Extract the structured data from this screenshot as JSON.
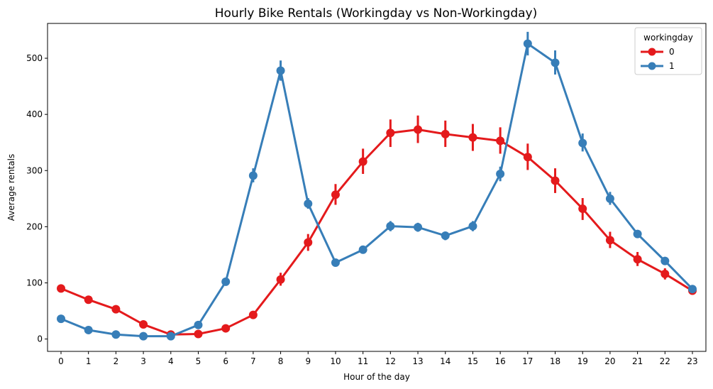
{
  "chart_data": {
    "type": "line",
    "title": "Hourly Bike Rentals (Workingday vs Non-Workingday)",
    "xlabel": "Hour of the day",
    "ylabel": "Average rentals",
    "categories": [
      "0",
      "1",
      "2",
      "3",
      "4",
      "5",
      "6",
      "7",
      "8",
      "9",
      "10",
      "11",
      "12",
      "13",
      "14",
      "15",
      "16",
      "17",
      "18",
      "19",
      "20",
      "21",
      "22",
      "23"
    ],
    "ylim": [
      -22,
      562
    ],
    "yticks": [
      0,
      100,
      200,
      300,
      400,
      500
    ],
    "grid": false,
    "legend": {
      "title": "workingday",
      "placement": "top-right"
    },
    "series": [
      {
        "name": "0",
        "color": "#e41a1c",
        "values": [
          90,
          70,
          53,
          26,
          8,
          9,
          19,
          43,
          106,
          172,
          257,
          316,
          367,
          373,
          365,
          359,
          353,
          324,
          282,
          232,
          176,
          142,
          116,
          86
        ],
        "err_low": [
          84,
          65,
          48,
          22,
          6,
          6,
          16,
          38,
          95,
          157,
          239,
          294,
          342,
          349,
          342,
          335,
          330,
          301,
          260,
          212,
          162,
          130,
          106,
          80
        ],
        "err_high": [
          97,
          75,
          58,
          30,
          11,
          12,
          23,
          48,
          118,
          187,
          276,
          339,
          391,
          398,
          389,
          383,
          377,
          348,
          304,
          251,
          191,
          155,
          126,
          92
        ]
      },
      {
        "name": "1",
        "color": "#377eb8",
        "values": [
          36,
          16,
          8,
          5,
          5,
          25,
          102,
          291,
          478,
          241,
          136,
          159,
          201,
          199,
          184,
          201,
          294,
          526,
          492,
          349,
          250,
          187,
          139,
          89
        ],
        "err_low": [
          33,
          14,
          7,
          4,
          4,
          23,
          97,
          279,
          460,
          232,
          131,
          152,
          192,
          191,
          176,
          192,
          281,
          505,
          471,
          334,
          239,
          180,
          133,
          85
        ],
        "err_high": [
          39,
          18,
          9,
          6,
          6,
          27,
          107,
          304,
          496,
          251,
          141,
          165,
          210,
          207,
          191,
          210,
          307,
          547,
          514,
          366,
          262,
          194,
          145,
          93
        ]
      }
    ]
  }
}
